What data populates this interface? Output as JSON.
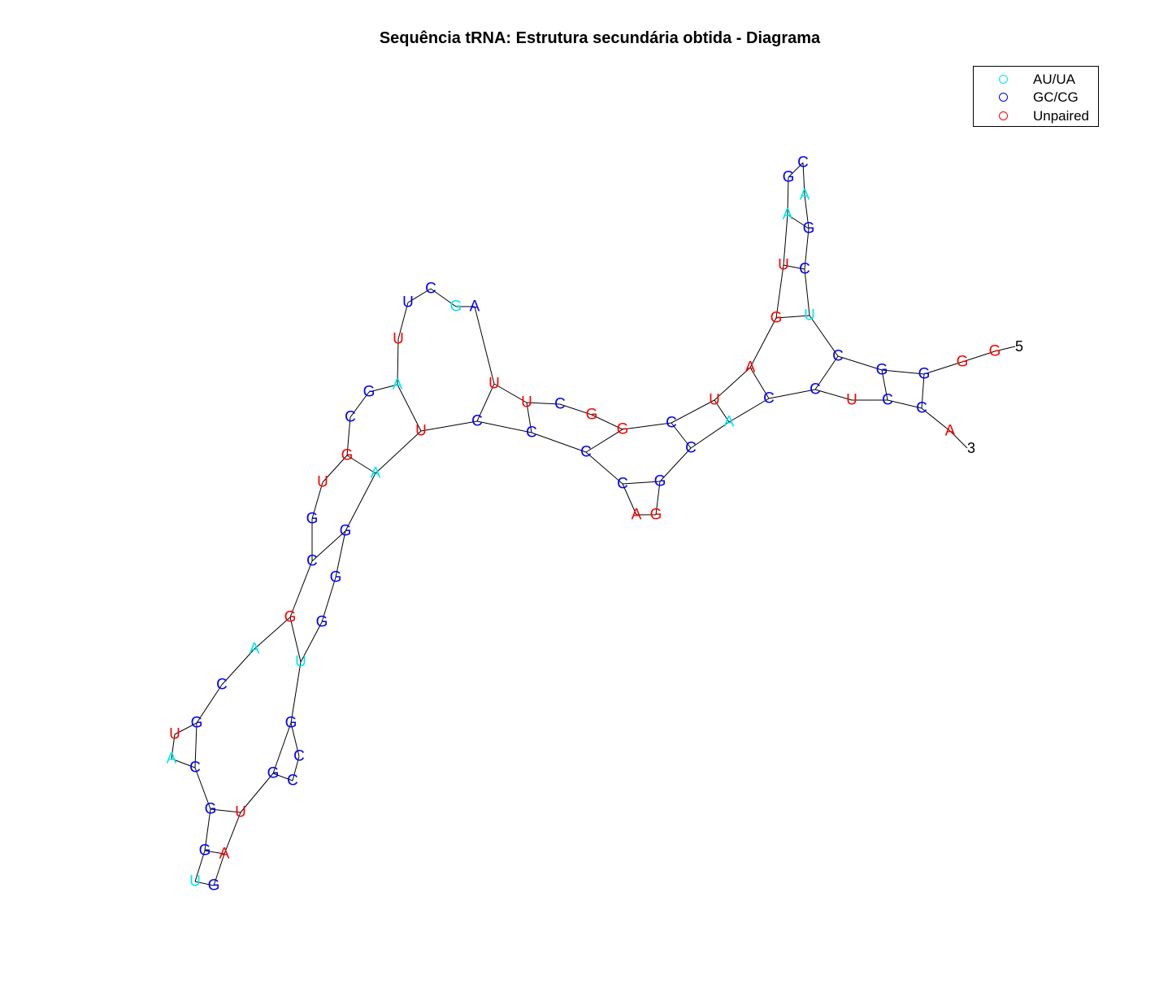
{
  "title": "Sequência tRNA: Estrutura secundária obtida - Diagrama",
  "colors": {
    "au": "#00e5ee",
    "gc": "#0000ff",
    "unpaired": "#ff0000"
  },
  "legend": [
    {
      "label": "AU/UA",
      "kind": "au"
    },
    {
      "label": "GC/CG",
      "kind": "gc"
    },
    {
      "label": "Unpaired",
      "kind": "unpaired"
    }
  ],
  "ends": {
    "five": "5",
    "three": "3"
  },
  "sequence": [
    "G",
    "G",
    "G",
    "G",
    "C",
    "U",
    "A",
    "G",
    "C",
    "C",
    "G",
    "A",
    "U",
    "G",
    "A",
    "U",
    "C",
    "G",
    "G",
    "C",
    "U",
    "U",
    "A",
    "G",
    "C",
    "U",
    "U",
    "A",
    "G",
    "C",
    "G",
    "U",
    "G",
    "C",
    "G",
    "A",
    "C",
    "G",
    "U",
    "A",
    "C",
    "G",
    "G",
    "U",
    "G",
    "A",
    "U",
    "G",
    "C",
    "C",
    "G",
    "U",
    "G",
    "G",
    "G",
    "A",
    "U",
    "C",
    "C",
    "C",
    "C",
    "A"
  ],
  "kinds": [
    "u",
    "u",
    "g",
    "g",
    "g",
    "a",
    "a",
    "g",
    "g",
    "g",
    "g",
    "a",
    "u",
    "u",
    "u",
    "u",
    "g",
    "u",
    "u",
    "g",
    "u",
    "u",
    "g",
    "a",
    "g",
    "g",
    "u",
    "a",
    "g",
    "g",
    "u",
    "u",
    "g",
    "g",
    "u",
    "a",
    "g",
    "g",
    "u",
    "a",
    "g",
    "g",
    "g",
    "a",
    "g",
    "u",
    "u",
    "g",
    "g",
    "g",
    "g",
    "a",
    "g",
    "g",
    "g",
    "a",
    "u",
    "g",
    "g",
    "g",
    "g",
    "u"
  ]
}
